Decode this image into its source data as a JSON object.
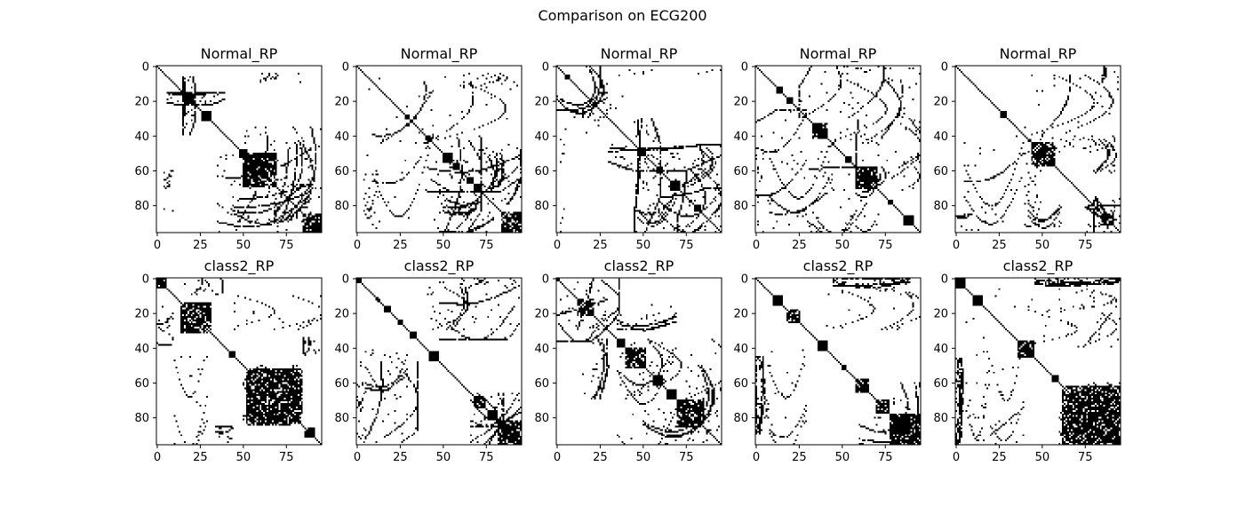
{
  "figure": {
    "suptitle": "Comparison on ECG200",
    "colors": {
      "background": "#ffffff",
      "foreground": "#000000"
    }
  },
  "chart_data": [
    {
      "type": "heatmap",
      "title": "Normal_RP",
      "row": 0,
      "col": 0,
      "size": 96,
      "xticks": [
        0,
        25,
        50,
        75
      ],
      "yticks": [
        0,
        20,
        40,
        60,
        80
      ],
      "blocks": [
        [
          17,
          22
        ],
        [
          26,
          32
        ],
        [
          48,
          52
        ],
        [
          50,
          70
        ],
        [
          85,
          96
        ]
      ],
      "offdiag": [
        [
          4,
          10,
          60,
          96
        ],
        [
          6,
          40,
          15,
          22
        ],
        [
          35,
          90,
          40,
          96
        ],
        [
          45,
          90,
          65,
          96
        ],
        [
          48,
          70,
          50,
          52
        ]
      ]
    },
    {
      "type": "heatmap",
      "title": "Normal_RP",
      "row": 0,
      "col": 1,
      "size": 96,
      "xticks": [
        0,
        25,
        50,
        75
      ],
      "yticks": [
        0,
        20,
        40,
        60,
        80
      ],
      "blocks": [
        [
          28,
          31
        ],
        [
          40,
          44
        ],
        [
          50,
          56
        ],
        [
          56,
          60
        ],
        [
          64,
          68
        ],
        [
          68,
          73
        ],
        [
          84,
          96
        ]
      ],
      "offdiag": [
        [
          4,
          12,
          40,
          96
        ],
        [
          9,
          45,
          5,
          96
        ],
        [
          40,
          96,
          45,
          72
        ],
        [
          48,
          80,
          70,
          96
        ],
        [
          50,
          70,
          78,
          85
        ]
      ]
    },
    {
      "type": "heatmap",
      "title": "Normal_RP",
      "row": 0,
      "col": 2,
      "size": 96,
      "xticks": [
        0,
        25,
        50,
        75
      ],
      "yticks": [
        0,
        20,
        40,
        60,
        80
      ],
      "blocks": [
        [
          5,
          8
        ],
        [
          47,
          52
        ],
        [
          58,
          62
        ],
        [
          66,
          72
        ],
        [
          80,
          84
        ]
      ],
      "offdiag": [
        [
          0,
          30,
          15,
          40
        ],
        [
          2,
          5,
          40,
          96
        ],
        [
          30,
          96,
          45,
          60
        ],
        [
          45,
          70,
          60,
          96
        ],
        [
          60,
          96,
          70,
          96
        ]
      ]
    },
    {
      "type": "heatmap",
      "title": "Normal_RP",
      "row": 0,
      "col": 3,
      "size": 96,
      "xticks": [
        0,
        25,
        50,
        75
      ],
      "yticks": [
        0,
        20,
        40,
        60,
        80
      ],
      "blocks": [
        [
          12,
          16
        ],
        [
          18,
          22
        ],
        [
          33,
          42
        ],
        [
          52,
          56
        ],
        [
          58,
          71
        ],
        [
          77,
          80
        ],
        [
          86,
          92
        ]
      ],
      "offdiag": [
        [
          0,
          30,
          25,
          96
        ],
        [
          0,
          5,
          50,
          96
        ],
        [
          8,
          45,
          45,
          96
        ],
        [
          30,
          65,
          58,
          96
        ],
        [
          58,
          72,
          65,
          96
        ]
      ]
    },
    {
      "type": "heatmap",
      "title": "Normal_RP",
      "row": 0,
      "col": 4,
      "size": 96,
      "xticks": [
        0,
        25,
        50,
        75
      ],
      "yticks": [
        0,
        20,
        40,
        60,
        80
      ],
      "blocks": [
        [
          26,
          30
        ],
        [
          44,
          58
        ],
        [
          84,
          92
        ]
      ],
      "offdiag": [
        [
          0,
          10,
          85,
          96
        ],
        [
          5,
          40,
          40,
          96
        ],
        [
          40,
          50,
          40,
          96
        ],
        [
          42,
          62,
          75,
          96
        ],
        [
          75,
          96,
          80,
          96
        ]
      ]
    },
    {
      "type": "heatmap",
      "title": "class2_RP",
      "row": 1,
      "col": 0,
      "size": 96,
      "xticks": [
        0,
        25,
        50,
        75
      ],
      "yticks": [
        0,
        20,
        40,
        60,
        80
      ],
      "blocks": [
        [
          0,
          6
        ],
        [
          14,
          32
        ],
        [
          42,
          46
        ],
        [
          52,
          84
        ],
        [
          86,
          92
        ]
      ],
      "offdiag": [
        [
          0,
          10,
          15,
          38
        ],
        [
          10,
          30,
          45,
          96
        ],
        [
          34,
          45,
          85,
          96
        ],
        [
          50,
          84,
          55,
          84
        ]
      ]
    },
    {
      "type": "heatmap",
      "title": "class2_RP",
      "row": 1,
      "col": 1,
      "size": 96,
      "xticks": [
        0,
        25,
        50,
        75
      ],
      "yticks": [
        0,
        20,
        40,
        60,
        80
      ],
      "blocks": [
        [
          0,
          3
        ],
        [
          11,
          14
        ],
        [
          16,
          20
        ],
        [
          24,
          27
        ],
        [
          31,
          35
        ],
        [
          42,
          48
        ],
        [
          68,
          75
        ],
        [
          76,
          82
        ],
        [
          82,
          96
        ]
      ],
      "offdiag": [
        [
          0,
          5,
          65,
          96
        ],
        [
          5,
          30,
          40,
          70
        ],
        [
          48,
          95,
          0,
          35
        ],
        [
          66,
          96,
          66,
          96
        ]
      ]
    },
    {
      "type": "heatmap",
      "title": "class2_RP",
      "row": 1,
      "col": 2,
      "size": 96,
      "xticks": [
        0,
        25,
        50,
        75
      ],
      "yticks": [
        0,
        20,
        40,
        60,
        80
      ],
      "blocks": [
        [
          0,
          2
        ],
        [
          12,
          22
        ],
        [
          35,
          40
        ],
        [
          40,
          52
        ],
        [
          56,
          62
        ],
        [
          64,
          70
        ],
        [
          70,
          86
        ]
      ],
      "offdiag": [
        [
          0,
          30,
          5,
          36
        ],
        [
          35,
          70,
          40,
          96
        ],
        [
          50,
          90,
          75,
          96
        ],
        [
          35,
          70,
          15,
          30
        ]
      ]
    },
    {
      "type": "heatmap",
      "title": "class2_RP",
      "row": 1,
      "col": 3,
      "size": 96,
      "xticks": [
        0,
        25,
        50,
        75
      ],
      "yticks": [
        0,
        20,
        40,
        60,
        80
      ],
      "blocks": [
        [
          10,
          16
        ],
        [
          18,
          26
        ],
        [
          36,
          42
        ],
        [
          50,
          53
        ],
        [
          58,
          66
        ],
        [
          70,
          78
        ],
        [
          78,
          96
        ]
      ],
      "offdiag": [
        [
          0,
          5,
          60,
          96
        ],
        [
          8,
          30,
          40,
          96
        ],
        [
          45,
          90,
          0,
          8
        ],
        [
          60,
          96,
          80,
          96
        ]
      ]
    },
    {
      "type": "heatmap",
      "title": "class2_RP",
      "row": 1,
      "col": 4,
      "size": 96,
      "xticks": [
        0,
        25,
        50,
        75
      ],
      "yticks": [
        0,
        20,
        40,
        60,
        80
      ],
      "blocks": [
        [
          0,
          6
        ],
        [
          10,
          16
        ],
        [
          36,
          46
        ],
        [
          56,
          60
        ],
        [
          62,
          96
        ]
      ],
      "offdiag": [
        [
          0,
          5,
          50,
          96
        ],
        [
          6,
          20,
          20,
          96
        ],
        [
          20,
          40,
          40,
          96
        ],
        [
          46,
          96,
          0,
          4
        ],
        [
          60,
          96,
          70,
          96
        ]
      ]
    }
  ]
}
